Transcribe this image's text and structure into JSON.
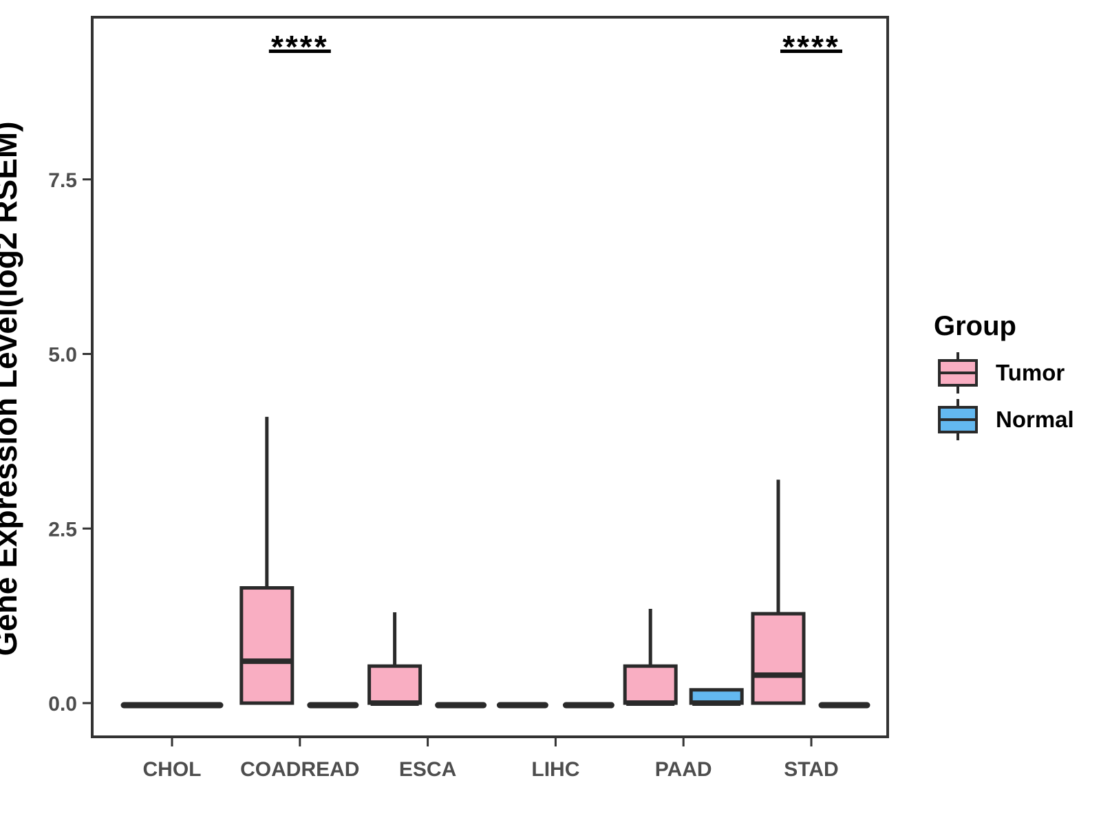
{
  "y_axis": {
    "title": "Gene Expression Level(log2 RSEM)",
    "tick_labels": [
      "0.0",
      "2.5",
      "5.0",
      "7.5"
    ]
  },
  "x_axis": {
    "tick_labels": [
      "CHOL",
      "COADREAD",
      "ESCA",
      "LIHC",
      "PAAD",
      "STAD"
    ]
  },
  "legend": {
    "title": "Group",
    "items": [
      {
        "label": "Tumor",
        "color": "#F9AEC2"
      },
      {
        "label": "Normal",
        "color": "#63B8F0"
      }
    ]
  },
  "styles": {
    "background": "#FFFFFF",
    "box_border": "#2A2A2A",
    "axis_color": "#333333",
    "tick_label_color": "#4D4D4D",
    "annotation_color": "#000000",
    "tumor_fill": "#F9AEC2",
    "normal_fill": "#63B8F0"
  },
  "chart_data": {
    "type": "boxplot",
    "title": "",
    "xlabel": "",
    "ylabel": "Gene Expression Level(log2 RSEM)",
    "categories": [
      "CHOL",
      "COADREAD",
      "ESCA",
      "LIHC",
      "PAAD",
      "STAD"
    ],
    "yticks": [
      0.0,
      2.5,
      5.0,
      7.5
    ],
    "ytick_labels": [
      "0.0",
      "2.5",
      "5.0",
      "7.5"
    ],
    "ylim": [
      -0.5,
      9.85
    ],
    "grid": false,
    "legend_position": "right",
    "series": [
      {
        "name": "Tumor",
        "color": "#F9AEC2",
        "boxes": [
          {
            "category": "CHOL",
            "min": 0,
            "q1": 0,
            "median": 0,
            "q3": 0,
            "max": 0,
            "full_width": true
          },
          {
            "category": "COADREAD",
            "min": 0,
            "q1": 0,
            "median": 0.6,
            "q3": 1.65,
            "max": 4.1
          },
          {
            "category": "ESCA",
            "min": 0,
            "q1": 0,
            "median": 0,
            "q3": 0.53,
            "max": 1.3
          },
          {
            "category": "LIHC",
            "min": 0,
            "q1": 0,
            "median": 0,
            "q3": 0,
            "max": 0
          },
          {
            "category": "PAAD",
            "min": 0,
            "q1": 0,
            "median": 0,
            "q3": 0.53,
            "max": 1.35
          },
          {
            "category": "STAD",
            "min": 0,
            "q1": 0,
            "median": 0.4,
            "q3": 1.28,
            "max": 3.2
          }
        ]
      },
      {
        "name": "Normal",
        "color": "#63B8F0",
        "boxes": [
          null,
          {
            "category": "COADREAD",
            "min": 0,
            "q1": 0,
            "median": 0,
            "q3": 0,
            "max": 0
          },
          {
            "category": "ESCA",
            "min": 0,
            "q1": 0,
            "median": 0,
            "q3": 0,
            "max": 0
          },
          {
            "category": "LIHC",
            "min": 0,
            "q1": 0,
            "median": 0,
            "q3": 0,
            "max": 0
          },
          {
            "category": "PAAD",
            "min": 0,
            "q1": 0,
            "median": 0,
            "q3": 0.19,
            "max": 0.19
          },
          {
            "category": "STAD",
            "min": 0,
            "q1": 0,
            "median": 0,
            "q3": 0,
            "max": 0
          }
        ]
      }
    ],
    "annotations": [
      {
        "category": "COADREAD",
        "text": "****",
        "meaning": "significance"
      },
      {
        "category": "STAD",
        "text": "****",
        "meaning": "significance"
      }
    ]
  }
}
